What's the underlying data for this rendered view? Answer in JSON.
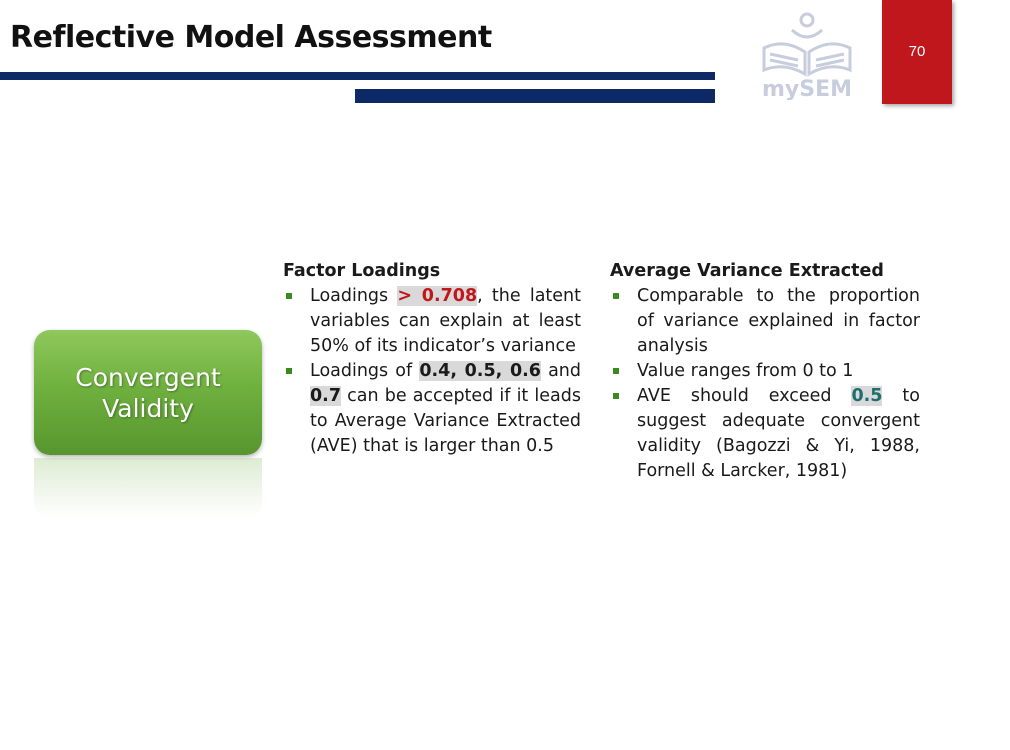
{
  "header": {
    "title": "Reflective Model Assessment",
    "page_number": "70",
    "logo_text": "mySEM"
  },
  "button": {
    "label_line1": "Convergent",
    "label_line2": "Validity"
  },
  "factor_loadings": {
    "heading": "Factor Loadings",
    "b1_pre": "Loadings ",
    "b1_hl": "> 0.708",
    "b1_post": ", the latent variables can explain at least 50% of its indicator’s variance",
    "b2_pre": "Loadings of ",
    "b2_hl1": "0.4, 0.5, 0.6",
    "b2_mid": " and ",
    "b2_hl2": "0.7",
    "b2_post": " can be accepted if it leads to Average Variance Extracted (AVE) that is larger than 0.5"
  },
  "ave": {
    "heading": "Average Variance Extracted",
    "b1": "Comparable to the proportion of variance explained in factor analysis",
    "b2": "Value ranges from 0 to 1",
    "b3_pre": "AVE should exceed ",
    "b3_hl": "0.5",
    "b3_post": " to suggest adequate convergent validity (Bagozzi & Yi, 1988, Fornell & Larcker, 1981)"
  },
  "colors": {
    "navy": "#0e2a66",
    "red": "#c0171c",
    "green": "#6fb13f",
    "teal": "#1f6e6e"
  }
}
